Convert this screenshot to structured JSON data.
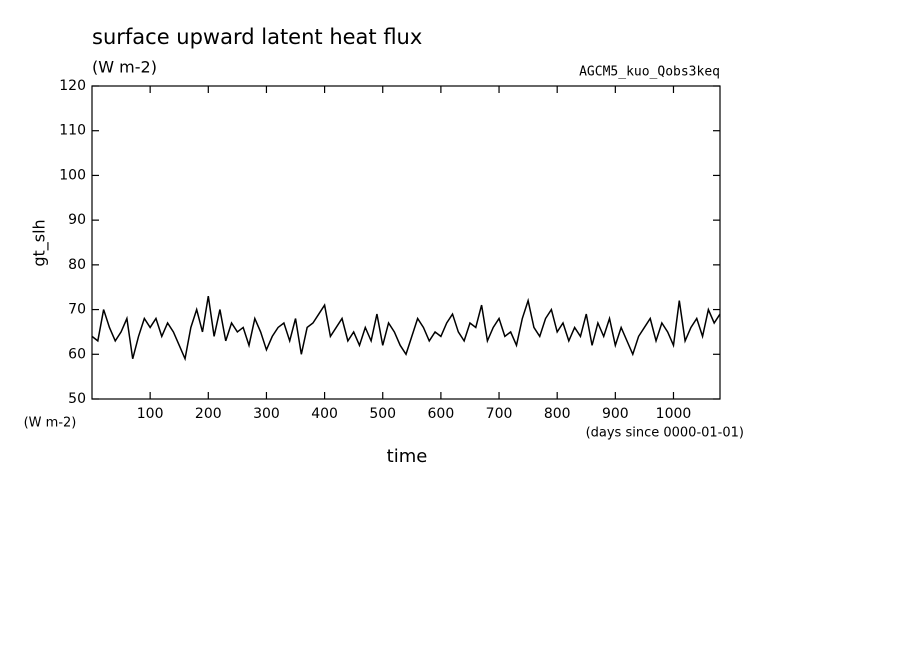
{
  "chart_data": {
    "type": "line",
    "title": "surface upward latent heat flux",
    "subtitle": "(W m-2)",
    "run_label": "AGCM5_kuo_Qobs3keq",
    "y_label": "gt_slh",
    "y_unit": "(W m-2)",
    "x_label": "time",
    "x_unit": "(days since 0000-01-01)",
    "xlim": [
      0,
      1080
    ],
    "xticks": [
      100,
      200,
      300,
      400,
      500,
      600,
      700,
      800,
      900,
      1000
    ],
    "ylim": [
      50,
      120
    ],
    "yticks": [
      50,
      60,
      70,
      80,
      90,
      100,
      110,
      120
    ],
    "color": "#000000",
    "x": [
      0,
      10,
      20,
      30,
      40,
      50,
      60,
      70,
      80,
      90,
      100,
      110,
      120,
      130,
      140,
      150,
      160,
      170,
      180,
      190,
      200,
      210,
      220,
      230,
      240,
      250,
      260,
      270,
      280,
      290,
      300,
      310,
      320,
      330,
      340,
      350,
      360,
      370,
      380,
      390,
      400,
      410,
      420,
      430,
      440,
      450,
      460,
      470,
      480,
      490,
      500,
      510,
      520,
      530,
      540,
      550,
      560,
      570,
      580,
      590,
      600,
      610,
      620,
      630,
      640,
      650,
      660,
      670,
      680,
      690,
      700,
      710,
      720,
      730,
      740,
      750,
      760,
      770,
      780,
      790,
      800,
      810,
      820,
      830,
      840,
      850,
      860,
      870,
      880,
      890,
      900,
      910,
      920,
      930,
      940,
      950,
      960,
      970,
      980,
      990,
      1000,
      1010,
      1020,
      1030,
      1040,
      1050,
      1060,
      1070,
      1080
    ],
    "values": [
      64,
      63,
      70,
      66,
      63,
      65,
      68,
      59,
      64,
      68,
      66,
      68,
      64,
      67,
      65,
      62,
      59,
      66,
      70,
      65,
      73,
      64,
      70,
      63,
      67,
      65,
      66,
      62,
      68,
      65,
      61,
      64,
      66,
      67,
      63,
      68,
      60,
      66,
      67,
      69,
      71,
      64,
      66,
      68,
      63,
      65,
      62,
      66,
      63,
      69,
      62,
      67,
      65,
      62,
      60,
      64,
      68,
      66,
      63,
      65,
      64,
      67,
      69,
      65,
      63,
      67,
      66,
      71,
      63,
      66,
      68,
      64,
      65,
      62,
      68,
      72,
      66,
      64,
      68,
      70,
      65,
      67,
      63,
      66,
      64,
      69,
      62,
      67,
      64,
      68,
      62,
      66,
      63,
      60,
      64,
      66,
      68,
      63,
      67,
      65,
      62,
      72,
      63,
      66,
      68,
      64,
      70,
      67,
      69
    ]
  }
}
